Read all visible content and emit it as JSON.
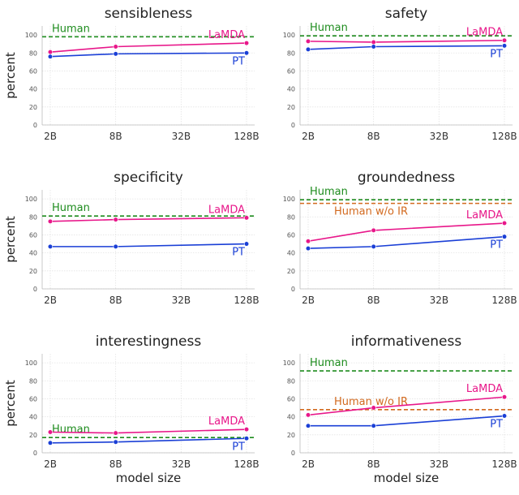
{
  "chart_data": {
    "type": "line",
    "x_categories": [
      "2B",
      "8B",
      "32B",
      "128B"
    ],
    "xlabel": "model size",
    "ylabel": "percent",
    "ylim": [
      0,
      110
    ],
    "yticks": [
      0,
      20,
      40,
      60,
      80,
      100
    ],
    "grid": true,
    "colors": {
      "LaMDA": "#e8178a",
      "PT": "#1a3fd6",
      "Human": "#1e8c1e",
      "Human w/o IR": "#d2691e"
    },
    "panels": [
      {
        "title": "sensibleness",
        "show_ylabel": true,
        "show_xlabel": false,
        "series": [
          {
            "name": "LaMDA",
            "x": [
              "2B",
              "8B",
              "128B"
            ],
            "values": [
              81,
              87,
              91
            ]
          },
          {
            "name": "PT",
            "x": [
              "2B",
              "8B",
              "128B"
            ],
            "values": [
              76,
              79,
              80
            ]
          }
        ],
        "references": [
          {
            "name": "Human",
            "value": 98
          }
        ]
      },
      {
        "title": "safety",
        "show_ylabel": false,
        "show_xlabel": false,
        "series": [
          {
            "name": "LaMDA",
            "x": [
              "2B",
              "8B",
              "128B"
            ],
            "values": [
              93,
              92,
              94
            ]
          },
          {
            "name": "PT",
            "x": [
              "2B",
              "8B",
              "128B"
            ],
            "values": [
              84,
              87,
              88
            ]
          }
        ],
        "references": [
          {
            "name": "Human",
            "value": 99
          }
        ]
      },
      {
        "title": "specificity",
        "show_ylabel": true,
        "show_xlabel": false,
        "series": [
          {
            "name": "LaMDA",
            "x": [
              "2B",
              "8B",
              "128B"
            ],
            "values": [
              75,
              77,
              79
            ]
          },
          {
            "name": "PT",
            "x": [
              "2B",
              "8B",
              "128B"
            ],
            "values": [
              47,
              47,
              50
            ]
          }
        ],
        "references": [
          {
            "name": "Human",
            "value": 81
          }
        ]
      },
      {
        "title": "groundedness",
        "show_ylabel": false,
        "show_xlabel": false,
        "series": [
          {
            "name": "LaMDA",
            "x": [
              "2B",
              "8B",
              "128B"
            ],
            "values": [
              53,
              65,
              73
            ]
          },
          {
            "name": "PT",
            "x": [
              "2B",
              "8B",
              "128B"
            ],
            "values": [
              45,
              47,
              58
            ]
          }
        ],
        "references": [
          {
            "name": "Human",
            "value": 99
          },
          {
            "name": "Human w/o IR",
            "value": 95
          }
        ]
      },
      {
        "title": "interestingness",
        "show_ylabel": true,
        "show_xlabel": true,
        "series": [
          {
            "name": "LaMDA",
            "x": [
              "2B",
              "8B",
              "128B"
            ],
            "values": [
              23,
              22,
              26
            ]
          },
          {
            "name": "PT",
            "x": [
              "2B",
              "8B",
              "128B"
            ],
            "values": [
              11,
              12,
              16
            ]
          }
        ],
        "references": [
          {
            "name": "Human",
            "value": 17
          }
        ]
      },
      {
        "title": "informativeness",
        "show_ylabel": false,
        "show_xlabel": true,
        "series": [
          {
            "name": "LaMDA",
            "x": [
              "2B",
              "8B",
              "128B"
            ],
            "values": [
              42,
              50,
              62
            ]
          },
          {
            "name": "PT",
            "x": [
              "2B",
              "8B",
              "128B"
            ],
            "values": [
              30,
              30,
              41
            ]
          }
        ],
        "references": [
          {
            "name": "Human",
            "value": 91
          },
          {
            "name": "Human w/o IR",
            "value": 48
          }
        ]
      }
    ]
  }
}
